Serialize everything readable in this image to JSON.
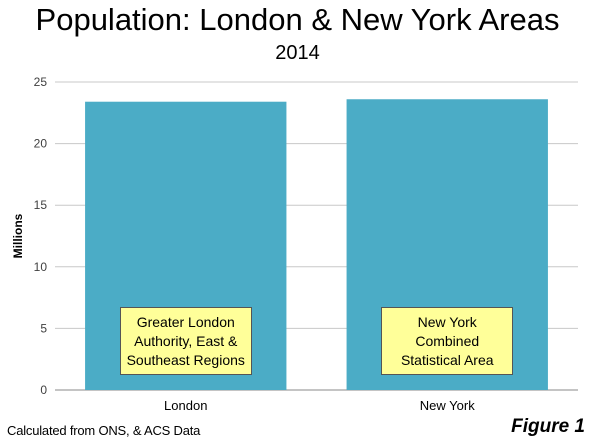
{
  "chart_data": {
    "type": "bar",
    "title": "Population: London & New York Areas",
    "subtitle": "2014",
    "ylabel": "Millions",
    "xlabel": "",
    "ylim": [
      0,
      25
    ],
    "yticks": [
      0,
      5,
      10,
      15,
      20,
      25
    ],
    "grid": true,
    "categories": [
      "London",
      "New York"
    ],
    "values": [
      23.4,
      23.6
    ],
    "bar_color": "#4bacc6",
    "annotations": [
      "Greater London\nAuthority, East &\nSoutheast Regions",
      "New York\nCombined\nStatistical Area"
    ]
  },
  "footer": {
    "source": "Calculated from ONS, & ACS Data",
    "figure_label": "Figure 1"
  }
}
